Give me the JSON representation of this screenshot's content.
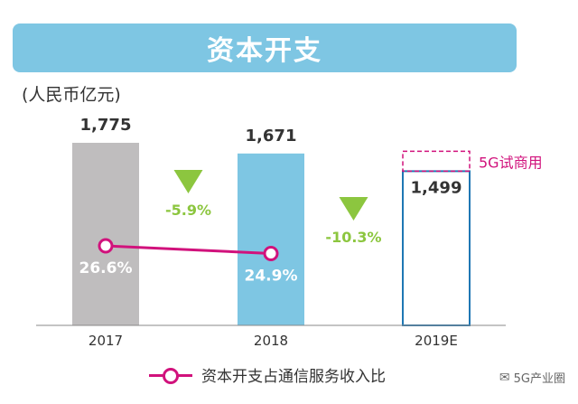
{
  "title": "资本开支",
  "unit_label": "(人民币亿元)",
  "legend_label": "资本开支占通信服务收入比",
  "watermark": "5G产业圈",
  "colors": {
    "bar_actual": "#bfbdbe",
    "bar_current": "#7ec6e3",
    "bar_estimate_border": "#1f77b4",
    "dashed_box": "#d1127c",
    "line": "#d1127c",
    "arrow": "#8cc63f",
    "banner": "#7ec6e3"
  },
  "chart_data": {
    "type": "bar",
    "title": "资本开支",
    "ylabel": "(人民币亿元)",
    "categories": [
      "2017",
      "2018",
      "2019E"
    ],
    "values": [
      1775,
      1671,
      1499
    ],
    "value_labels": [
      "1,775",
      "1,671",
      "1,499"
    ],
    "ylim": [
      0,
      1775
    ],
    "changes": [
      {
        "between": [
          "2017",
          "2018"
        ],
        "label": "-5.9%"
      },
      {
        "between": [
          "2018",
          "2019E"
        ],
        "label": "-10.3%"
      }
    ],
    "annotation": {
      "category": "2019E",
      "label": "5G试商用"
    },
    "ratio_series": {
      "name": "资本开支占通信服务收入比",
      "categories": [
        "2017",
        "2018"
      ],
      "values": [
        26.6,
        24.9
      ],
      "labels": [
        "26.6%",
        "24.9%"
      ]
    }
  }
}
